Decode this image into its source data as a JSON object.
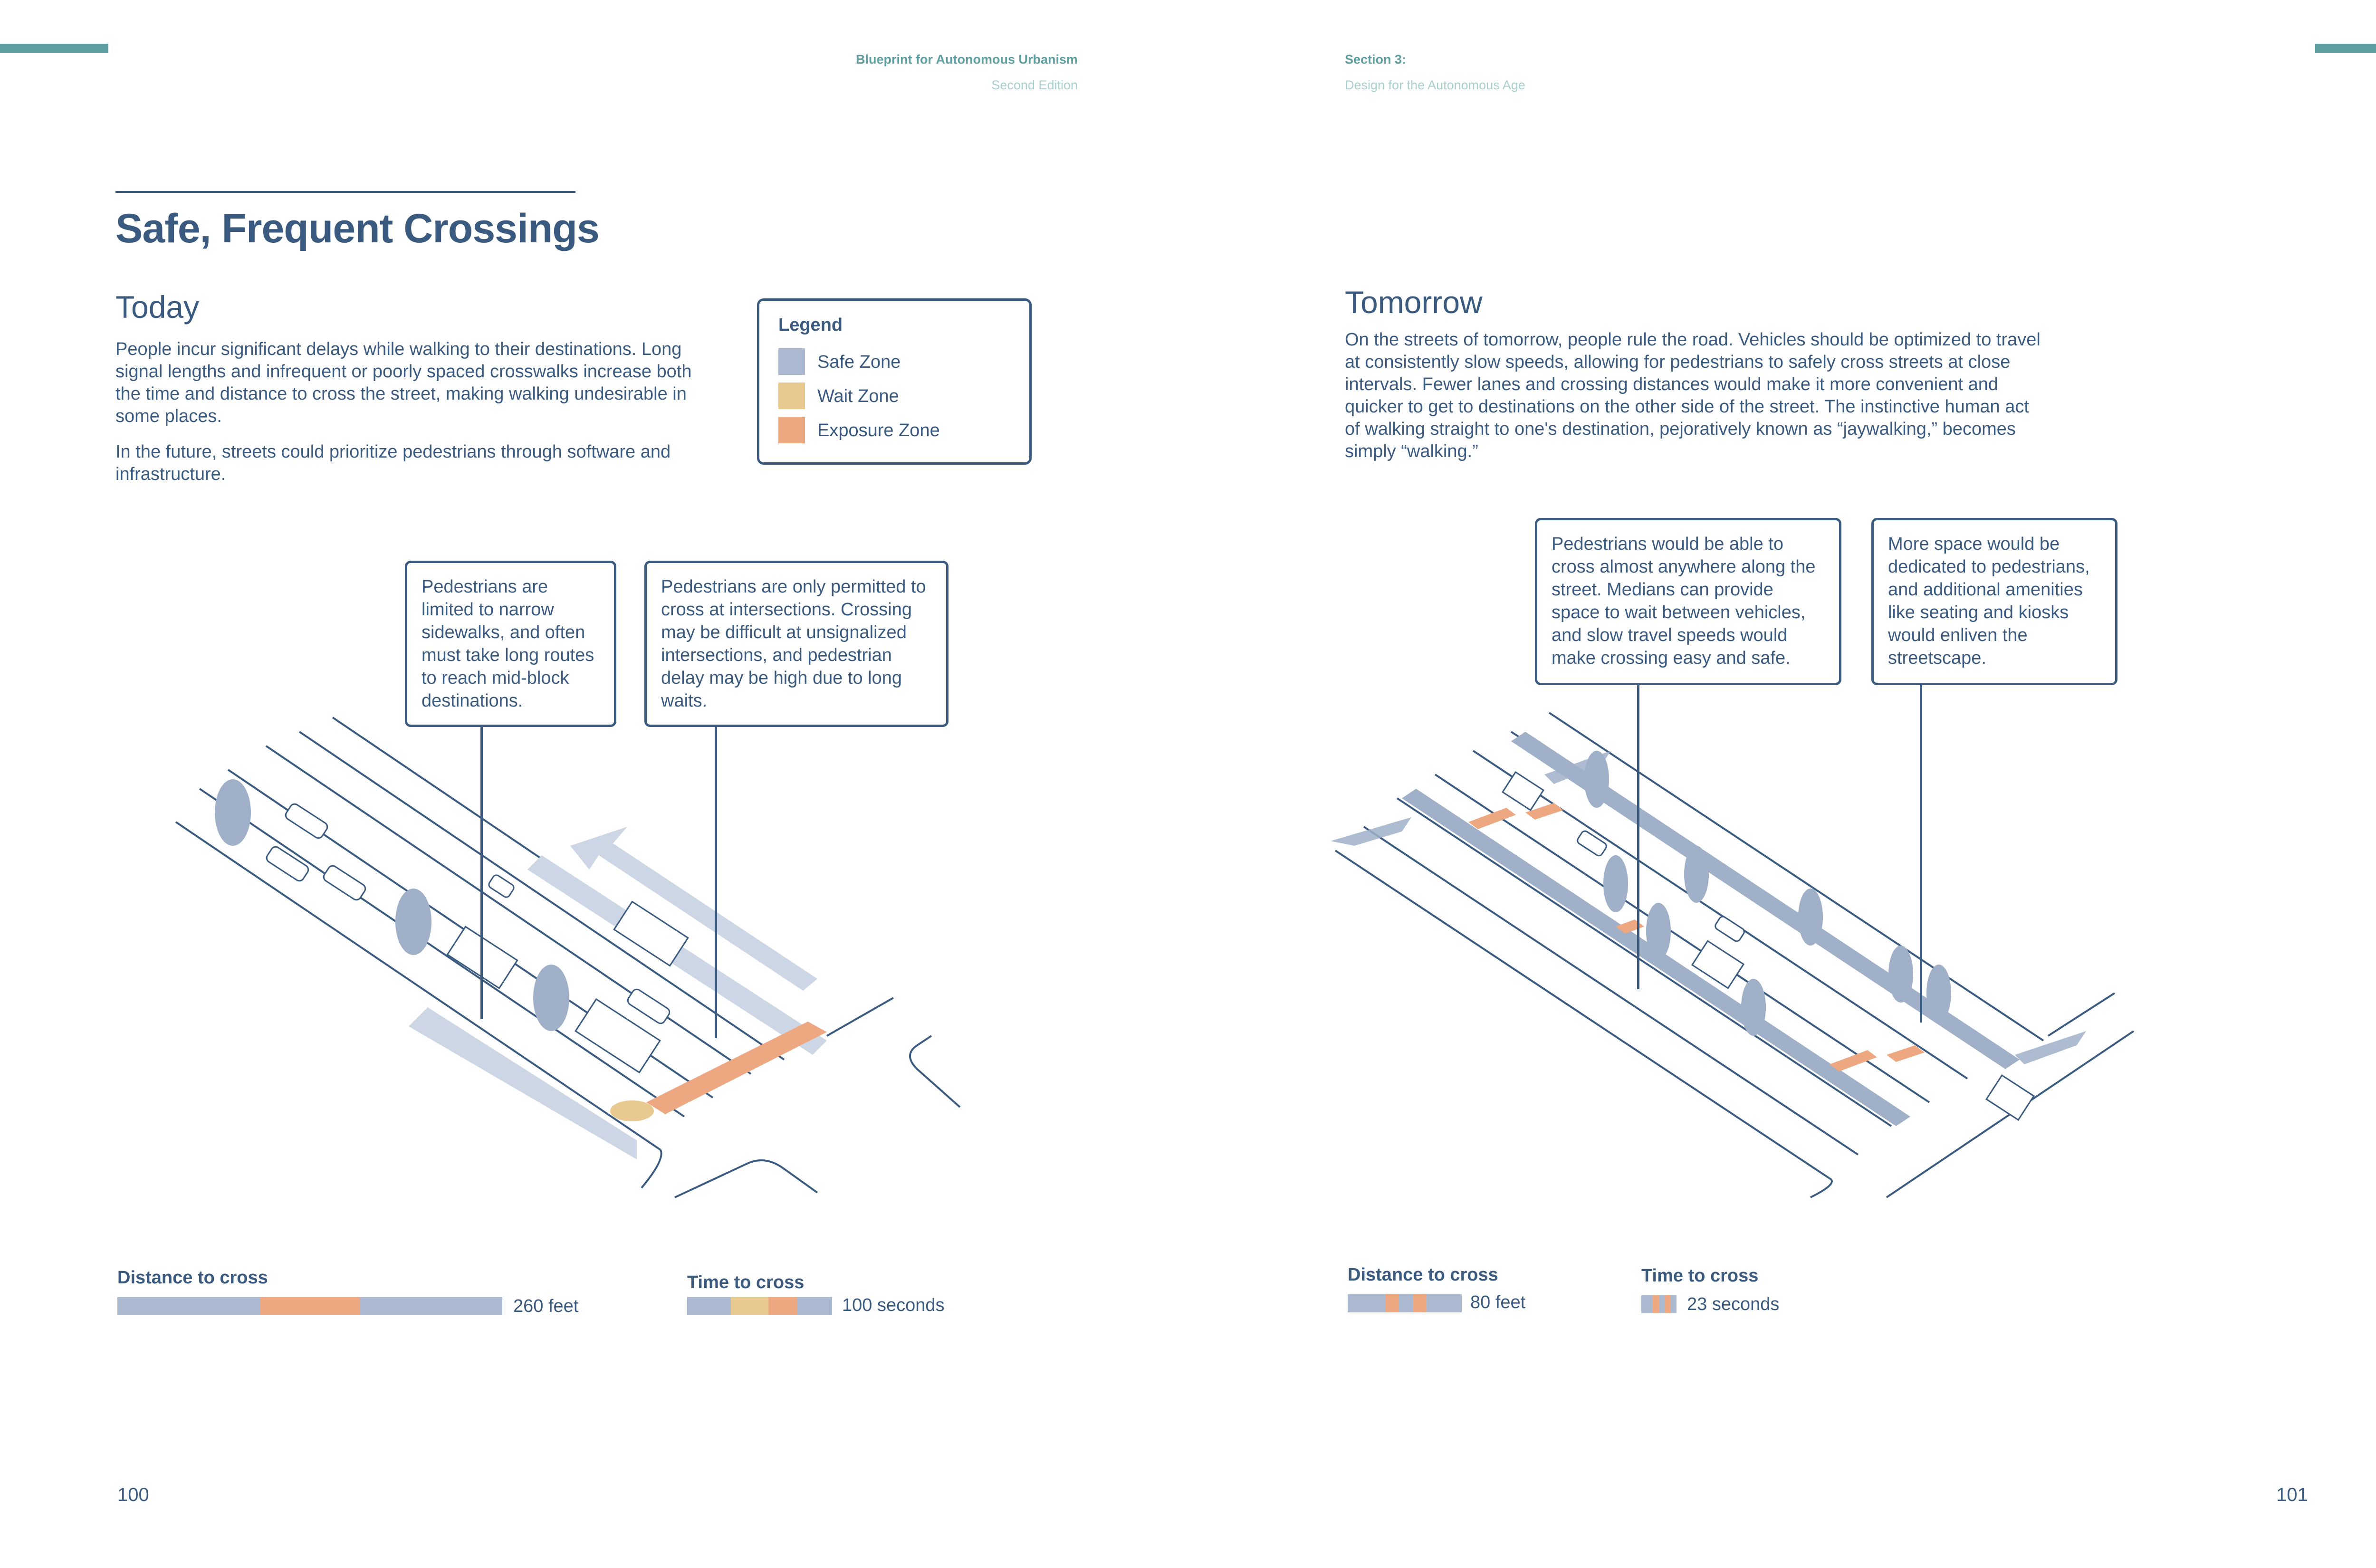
{
  "header": {
    "book_title": "Blueprint for Autonomous Urbanism",
    "book_edition": "Second Edition",
    "section_title": "Section 3:",
    "section_subtitle": "Design for the Autonomous Age"
  },
  "colors": {
    "accent_teal": "#5f9ea0",
    "ink": "#3a5a80",
    "safe_zone": "#aab8d0",
    "wait_zone": "#e8c98f",
    "exposure_zone": "#eda882"
  },
  "left_page": {
    "title": "Safe, Frequent Crossings",
    "subhead": "Today",
    "paragraphs": [
      "People incur significant delays while walking to their destinations. Long signal lengths and infrequent or poorly spaced crosswalks increase both the time and distance to cross the street, making walking undesirable in some places.",
      "In the future, streets could prioritize pedestrians through software and infrastructure."
    ],
    "legend": {
      "title": "Legend",
      "items": [
        {
          "label": "Safe Zone",
          "color": "#aab8d0"
        },
        {
          "label": "Wait Zone",
          "color": "#e8c98f"
        },
        {
          "label": "Exposure Zone",
          "color": "#eda882"
        }
      ]
    },
    "callouts": [
      "Pedestrians are limited to narrow sidewalks, and often must take long routes to reach mid-block destinations.",
      "Pedestrians are only permitted to cross at intersections. Crossing may be difficult at unsignalized intersections, and pedestrian delay may be high due to long waits."
    ],
    "distance": {
      "label": "Distance to cross",
      "value": "260 feet",
      "segments": [
        {
          "zone": "safe",
          "fraction": 0.37
        },
        {
          "zone": "exposure",
          "fraction": 0.26
        },
        {
          "zone": "safe",
          "fraction": 0.37
        }
      ]
    },
    "time": {
      "label": "Time to cross",
      "value": "100 seconds",
      "segments": [
        {
          "zone": "safe",
          "fraction": 0.3
        },
        {
          "zone": "wait",
          "fraction": 0.26
        },
        {
          "zone": "exposure",
          "fraction": 0.2
        },
        {
          "zone": "safe",
          "fraction": 0.24
        }
      ]
    },
    "page_number": "100"
  },
  "right_page": {
    "subhead": "Tomorrow",
    "paragraph": "On the streets of tomorrow, people rule the road. Vehicles should be optimized to travel at consistently slow speeds, allowing for pedestrians to safely cross streets at close intervals. Fewer lanes and crossing distances would make it more convenient and quicker to get to destinations on the other side of the street. The instinctive human act of walking straight to one's destination, pejoratively known as “jaywalking,” becomes simply “walking.”",
    "callouts": [
      "Pedestrians would be able to cross almost anywhere along the street. Medians can provide space to wait between vehicles, and slow travel speeds would make crossing easy and safe.",
      "More space would be dedicated to pedestrians, and additional amenities like seating and kiosks would enliven the streetscape."
    ],
    "distance": {
      "label": "Distance to cross",
      "value": "80 feet",
      "segments": [
        {
          "zone": "safe",
          "fraction": 0.33
        },
        {
          "zone": "exposure",
          "fraction": 0.12
        },
        {
          "zone": "safe",
          "fraction": 0.12
        },
        {
          "zone": "exposure",
          "fraction": 0.12
        },
        {
          "zone": "safe",
          "fraction": 0.31
        }
      ]
    },
    "time": {
      "label": "Time to cross",
      "value": "23 seconds",
      "segments": [
        {
          "zone": "safe",
          "fraction": 0.33
        },
        {
          "zone": "exposure",
          "fraction": 0.17
        },
        {
          "zone": "safe",
          "fraction": 0.17
        },
        {
          "zone": "exposure",
          "fraction": 0.17
        },
        {
          "zone": "safe",
          "fraction": 0.16
        }
      ]
    },
    "page_number": "101"
  }
}
